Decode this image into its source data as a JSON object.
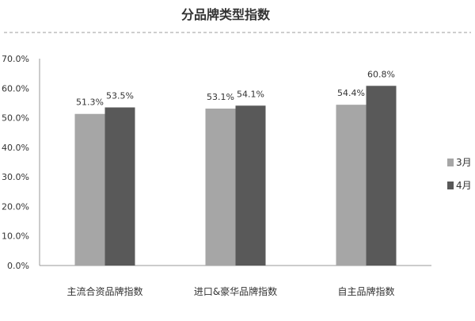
{
  "chart_data": {
    "type": "bar",
    "title": "分品牌类型指数",
    "categories": [
      "主流合资品牌指数",
      "进口&豪华品牌指数",
      "自主品牌指数"
    ],
    "series": [
      {
        "name": "3月",
        "values": [
          51.3,
          53.1,
          54.4
        ],
        "labels": [
          "51.3%",
          "53.1%",
          "54.4%"
        ],
        "color": "#a6a6a6"
      },
      {
        "name": "4月",
        "values": [
          53.5,
          54.1,
          60.8
        ],
        "labels": [
          "53.5%",
          "54.1%",
          "60.8%"
        ],
        "color": "#595959"
      }
    ],
    "ylim": [
      0,
      70
    ],
    "yticks": [
      "0.0%",
      "10.0%",
      "20.0%",
      "30.0%",
      "40.0%",
      "50.0%",
      "60.0%",
      "70.0%"
    ],
    "grid": false,
    "legend": "right"
  }
}
